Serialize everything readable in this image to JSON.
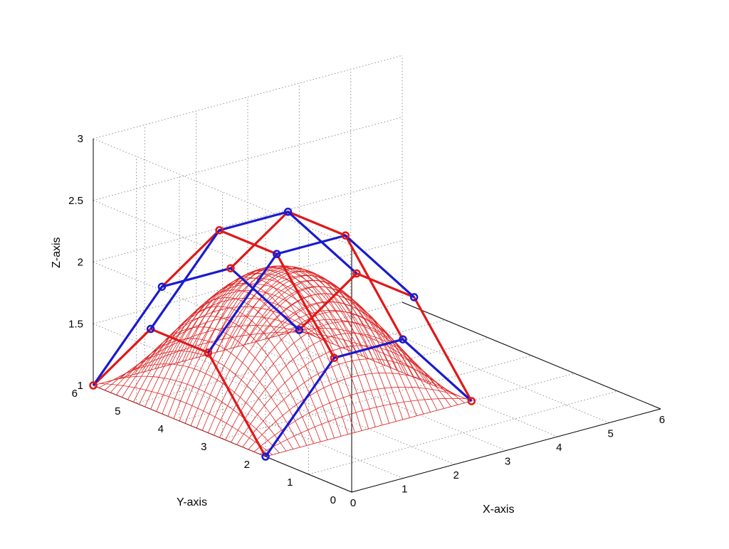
{
  "chart_data": {
    "type": "3d-surface-with-control-net",
    "xlabel": "X-axis",
    "ylabel": "Y-axis",
    "zlabel": "Z-axis",
    "xlim": [
      0,
      6
    ],
    "ylim": [
      0,
      6
    ],
    "zlim": [
      1,
      3
    ],
    "xticks": [
      "0",
      "1",
      "2",
      "3",
      "4",
      "5",
      "6"
    ],
    "yticks": [
      "0",
      "1",
      "2",
      "3",
      "4",
      "5",
      "6"
    ],
    "zticks": [
      "1",
      "1.5",
      "2",
      "2.5",
      "3"
    ],
    "grid": true,
    "colors": {
      "surface": "#dd2222",
      "net_red": "#e01818",
      "net_blue": "#1a1ad0"
    },
    "surface": {
      "x_range": [
        0,
        4
      ],
      "y_range": [
        2,
        6
      ],
      "z_base": 1,
      "z_peak": 2,
      "grid_lines": 30
    },
    "control_points": {
      "x": [
        0,
        1.333,
        2.667,
        4
      ],
      "y": [
        2,
        3.333,
        4.667,
        6
      ],
      "z": [
        [
          1.0,
          1.65,
          1.65,
          1.0
        ],
        [
          1.65,
          2.3,
          2.3,
          1.65
        ],
        [
          1.65,
          2.3,
          2.3,
          1.65
        ],
        [
          1.0,
          1.65,
          1.65,
          1.0
        ]
      ]
    }
  }
}
